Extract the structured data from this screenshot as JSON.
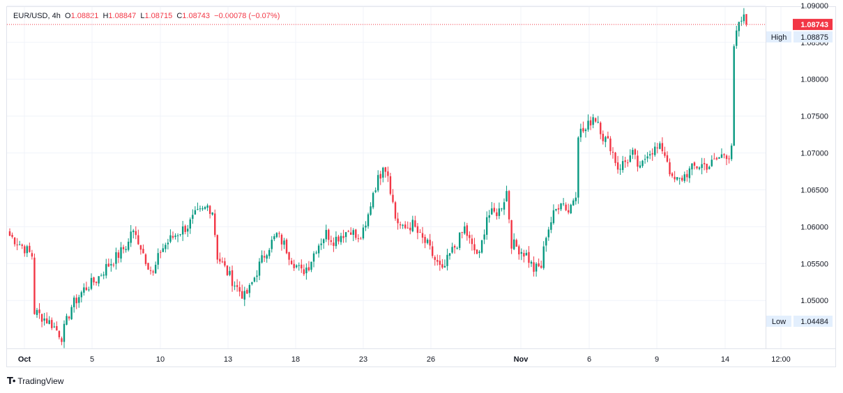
{
  "header": {
    "symbol": "EUR/USD",
    "interval": "4h",
    "open_label": "O",
    "open": "1.08821",
    "high_label": "H",
    "high": "1.08847",
    "low_label": "L",
    "low": "1.08715",
    "close_label": "C",
    "close": "1.08743",
    "change": "−0.00078 (−0.07%)"
  },
  "branding": {
    "name": "TradingView",
    "icon": "tradingview-logo-icon"
  },
  "colors": {
    "up": "#089981",
    "down": "#f23645",
    "grid": "#f0f3fa",
    "price_tag": "#f23645",
    "hl_tag": "#e3effd"
  },
  "chart_data": {
    "type": "candlestick",
    "symbol": "EUR/USD",
    "interval": "4h",
    "y_range": [
      1.0435,
      1.0898
    ],
    "y_ticks": [
      "1.09000",
      "1.08500",
      "1.08000",
      "1.07500",
      "1.07000",
      "1.06500",
      "1.06000",
      "1.05500",
      "1.05000"
    ],
    "y_tick_values": [
      1.09,
      1.085,
      1.08,
      1.075,
      1.07,
      1.065,
      1.06,
      1.055,
      1.05
    ],
    "x_labels": [
      "Oct",
      "5",
      "10",
      "13",
      "18",
      "23",
      "26",
      "Nov",
      "6",
      "9",
      "14",
      "12:00"
    ],
    "bold_x_labels": [
      "Oct",
      "Nov"
    ],
    "last_price": 1.08743,
    "last_price_label": "1.08743",
    "high": {
      "label": "High",
      "value": "1.08875"
    },
    "low": {
      "label": "Low",
      "value": "1.04484"
    },
    "anchors": [
      [
        0,
        1.0588
      ],
      [
        5,
        1.0574
      ],
      [
        9,
        1.0561
      ],
      [
        10,
        1.0485
      ],
      [
        13,
        1.0478
      ],
      [
        17,
        1.0468
      ],
      [
        21,
        1.0451
      ],
      [
        25,
        1.0492
      ],
      [
        30,
        1.0515
      ],
      [
        35,
        1.0528
      ],
      [
        39,
        1.0545
      ],
      [
        44,
        1.0562
      ],
      [
        48,
        1.0578
      ],
      [
        49,
        1.0595
      ],
      [
        52,
        1.0582
      ],
      [
        55,
        1.0556
      ],
      [
        58,
        1.0535
      ],
      [
        61,
        1.0568
      ],
      [
        65,
        1.0583
      ],
      [
        68,
        1.0592
      ],
      [
        72,
        1.0601
      ],
      [
        75,
        1.0615
      ],
      [
        78,
        1.0621
      ],
      [
        80,
        1.0628
      ],
      [
        82,
        1.0622
      ],
      [
        84,
        1.056
      ],
      [
        88,
        1.0538
      ],
      [
        92,
        1.0517
      ],
      [
        95,
        1.0505
      ],
      [
        97,
        1.0515
      ],
      [
        101,
        1.0548
      ],
      [
        104,
        1.0569
      ],
      [
        108,
        1.0589
      ],
      [
        111,
        1.0576
      ],
      [
        114,
        1.0556
      ],
      [
        118,
        1.0538
      ],
      [
        121,
        1.0548
      ],
      [
        124,
        1.0572
      ],
      [
        128,
        1.0591
      ],
      [
        131,
        1.0582
      ],
      [
        134,
        1.0589
      ],
      [
        138,
        1.0597
      ],
      [
        141,
        1.058
      ],
      [
        144,
        1.0598
      ],
      [
        147,
        1.0648
      ],
      [
        150,
        1.0672
      ],
      [
        151,
        1.0687
      ],
      [
        153,
        1.0672
      ],
      [
        156,
        1.0612
      ],
      [
        159,
        1.0596
      ],
      [
        163,
        1.0603
      ],
      [
        166,
        1.0586
      ],
      [
        169,
        1.0575
      ],
      [
        172,
        1.0555
      ],
      [
        175,
        1.0538
      ],
      [
        178,
        1.0562
      ],
      [
        181,
        1.0578
      ],
      [
        184,
        1.0598
      ],
      [
        187,
        1.0572
      ],
      [
        190,
        1.056
      ],
      [
        193,
        1.0615
      ],
      [
        196,
        1.0618
      ],
      [
        198,
        1.0622
      ],
      [
        200,
        1.0638
      ],
      [
        201,
        1.0648
      ],
      [
        203,
        1.0578
      ],
      [
        206,
        1.057
      ],
      [
        209,
        1.0562
      ],
      [
        212,
        1.0542
      ],
      [
        215,
        1.0546
      ],
      [
        217,
        1.059
      ],
      [
        220,
        1.0616
      ],
      [
        223,
        1.0637
      ],
      [
        226,
        1.0621
      ],
      [
        229,
        1.0647
      ],
      [
        230,
        1.0728
      ],
      [
        233,
        1.0731
      ],
      [
        236,
        1.075
      ],
      [
        238,
        1.0744
      ],
      [
        240,
        1.0722
      ],
      [
        243,
        1.071
      ],
      [
        246,
        1.068
      ],
      [
        249,
        1.0688
      ],
      [
        252,
        1.0698
      ],
      [
        255,
        1.0676
      ],
      [
        258,
        1.0702
      ],
      [
        261,
        1.0705
      ],
      [
        264,
        1.0706
      ],
      [
        266,
        1.0691
      ],
      [
        268,
        1.0662
      ],
      [
        271,
        1.0663
      ],
      [
        274,
        1.0673
      ],
      [
        277,
        1.0681
      ],
      [
        280,
        1.0684
      ],
      [
        283,
        1.0683
      ],
      [
        286,
        1.0691
      ],
      [
        289,
        1.0699
      ],
      [
        291,
        1.0698
      ],
      [
        292,
        1.0712
      ],
      [
        293,
        1.0838
      ],
      [
        294,
        1.0862
      ],
      [
        296,
        1.088
      ],
      [
        297,
        1.0882
      ],
      [
        298,
        1.0874
      ]
    ]
  }
}
